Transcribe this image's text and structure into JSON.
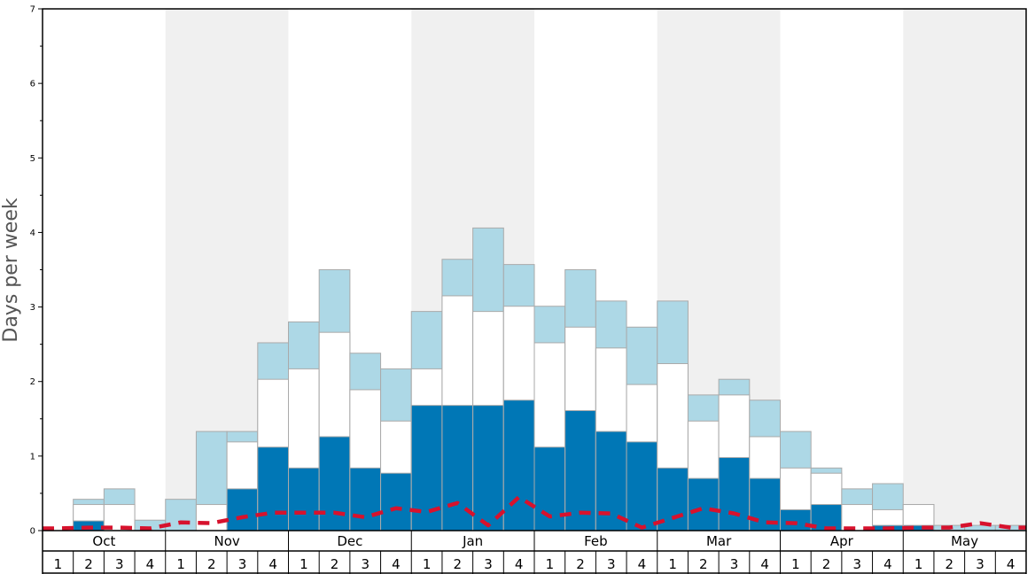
{
  "chart_data": {
    "type": "bar",
    "ylabel": "Days per week",
    "ylim": [
      0,
      7
    ],
    "y_ticks": [
      "0",
      "1",
      "2",
      "3",
      "4",
      "5",
      "6",
      "7"
    ],
    "months": [
      "Oct",
      "Nov",
      "Dec",
      "Jan",
      "Feb",
      "Mar",
      "Apr",
      "May"
    ],
    "week_labels": [
      "1",
      "2",
      "3",
      "4"
    ],
    "colors": {
      "bottom": "#0077b6",
      "middle": "#ffffff",
      "top": "#add8e6",
      "line": "#d7122d",
      "shade": "#f0f0f0",
      "bar_edge": "#aaaaaa"
    },
    "series": [
      {
        "values": [
          0,
          0.13,
          0,
          0,
          0,
          0,
          0.56,
          1.12,
          0.84,
          1.26,
          0.84,
          0.77,
          1.68,
          1.68,
          1.68,
          1.75,
          1.12,
          1.61,
          1.33,
          1.19,
          0.84,
          0.7,
          0.98,
          0.7,
          0.28,
          0.35,
          0,
          0.07,
          0.07,
          0,
          0,
          0
        ]
      },
      {
        "values": [
          0,
          0.35,
          0.35,
          0,
          0,
          0.35,
          1.19,
          2.03,
          2.17,
          2.66,
          1.89,
          1.47,
          2.17,
          3.15,
          2.94,
          3.01,
          2.52,
          2.73,
          2.45,
          1.96,
          2.24,
          1.47,
          1.82,
          1.26,
          0.84,
          0.77,
          0.35,
          0.28,
          0.35,
          0,
          0,
          0
        ]
      },
      {
        "values": [
          0,
          0.42,
          0.56,
          0.14,
          0.42,
          1.33,
          1.33,
          2.52,
          2.8,
          3.5,
          2.38,
          2.17,
          2.94,
          3.64,
          4.06,
          3.57,
          3.01,
          3.5,
          3.08,
          2.73,
          3.08,
          1.82,
          2.03,
          1.75,
          1.33,
          0.84,
          0.56,
          0.63,
          0.35,
          0.07,
          0.07,
          0.07
        ]
      },
      {
        "values": [
          0.03,
          0.04,
          0.04,
          0.03,
          0.11,
          0.1,
          0.18,
          0.24,
          0.24,
          0.24,
          0.18,
          0.3,
          0.25,
          0.37,
          0.07,
          0.45,
          0.19,
          0.24,
          0.23,
          0.04,
          0.17,
          0.3,
          0.23,
          0.11,
          0.1,
          0.03,
          0.03,
          0.03,
          0.04,
          0.04,
          0.1,
          0.04
        ]
      }
    ]
  }
}
